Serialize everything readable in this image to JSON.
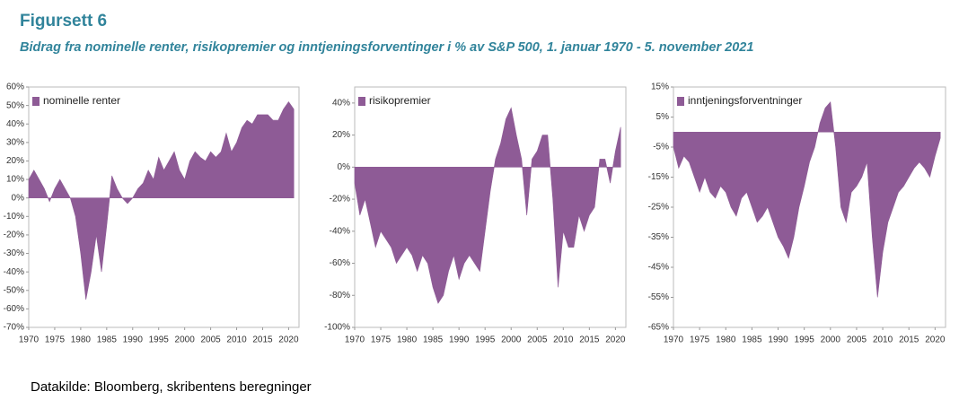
{
  "title": "Figursett 6",
  "subtitle": "Bidrag fra nominelle renter, risikopremier og inntjeningsforventinger i % av S&P 500, 1. januar 1970 - 5. november 2021",
  "source": "Datakilde: Bloomberg, skribentens beregninger",
  "chart_data": [
    {
      "type": "area",
      "legend": "upper left",
      "x": [
        1970,
        1971,
        1972,
        1973,
        1974,
        1975,
        1976,
        1977,
        1978,
        1979,
        1980,
        1981,
        1982,
        1983,
        1984,
        1985,
        1986,
        1987,
        1988,
        1989,
        1990,
        1991,
        1992,
        1993,
        1994,
        1995,
        1996,
        1997,
        1998,
        1999,
        2000,
        2001,
        2002,
        2003,
        2004,
        2005,
        2006,
        2007,
        2008,
        2009,
        2010,
        2011,
        2012,
        2013,
        2014,
        2015,
        2016,
        2017,
        2018,
        2019,
        2020,
        2021
      ],
      "series": [
        {
          "name": "nominelle renter",
          "color": "#8e5b96",
          "values": [
            10,
            15,
            10,
            5,
            -2,
            5,
            10,
            5,
            0,
            -10,
            -30,
            -55,
            -40,
            -20,
            -40,
            -15,
            12,
            5,
            0,
            -3,
            0,
            5,
            8,
            15,
            10,
            22,
            15,
            20,
            25,
            15,
            10,
            20,
            25,
            22,
            20,
            25,
            22,
            25,
            35,
            25,
            30,
            38,
            42,
            40,
            45,
            45,
            45,
            42,
            42,
            48,
            52,
            48
          ]
        }
      ],
      "xlim": [
        1970,
        2022
      ],
      "ylim": [
        -70,
        60
      ],
      "xticks": [
        1970,
        1975,
        1980,
        1985,
        1990,
        1995,
        2000,
        2005,
        2010,
        2015,
        2020
      ],
      "yticks": [
        {
          "value": 60,
          "label": "60%"
        },
        {
          "value": 50,
          "label": "50%"
        },
        {
          "value": 40,
          "label": "40%"
        },
        {
          "value": 30,
          "label": "30%"
        },
        {
          "value": 20,
          "label": "20%"
        },
        {
          "value": 10,
          "label": "10%"
        },
        {
          "value": 0,
          "label": "0%"
        },
        {
          "value": -10,
          "label": "-10%"
        },
        {
          "value": -20,
          "label": "-20%"
        },
        {
          "value": -30,
          "label": "-30%"
        },
        {
          "value": -40,
          "label": "-40%"
        },
        {
          "value": -50,
          "label": "-50%"
        },
        {
          "value": -60,
          "label": "-60%"
        },
        {
          "value": -70,
          "label": "-70%"
        }
      ]
    },
    {
      "type": "area",
      "legend": "upper left",
      "x": [
        1970,
        1971,
        1972,
        1973,
        1974,
        1975,
        1976,
        1977,
        1978,
        1979,
        1980,
        1981,
        1982,
        1983,
        1984,
        1985,
        1986,
        1987,
        1988,
        1989,
        1990,
        1991,
        1992,
        1993,
        1994,
        1995,
        1996,
        1997,
        1998,
        1999,
        2000,
        2001,
        2002,
        2003,
        2004,
        2005,
        2006,
        2007,
        2008,
        2009,
        2010,
        2011,
        2012,
        2013,
        2014,
        2015,
        2016,
        2017,
        2018,
        2019,
        2020,
        2021
      ],
      "series": [
        {
          "name": "risikopremier",
          "color": "#8e5b96",
          "values": [
            -10,
            -30,
            -20,
            -35,
            -50,
            -40,
            -45,
            -50,
            -60,
            -55,
            -50,
            -55,
            -65,
            -55,
            -60,
            -75,
            -85,
            -80,
            -65,
            -55,
            -70,
            -60,
            -55,
            -60,
            -65,
            -40,
            -15,
            5,
            15,
            30,
            37,
            20,
            5,
            -30,
            5,
            10,
            20,
            20,
            -20,
            -75,
            -40,
            -50,
            -50,
            -30,
            -40,
            -30,
            -25,
            5,
            5,
            -10,
            10,
            25
          ]
        }
      ],
      "xlim": [
        1970,
        2022
      ],
      "ylim": [
        -100,
        50
      ],
      "xticks": [
        1970,
        1975,
        1980,
        1985,
        1990,
        1995,
        2000,
        2005,
        2010,
        2015,
        2020
      ],
      "yticks": [
        {
          "value": 40,
          "label": "40%"
        },
        {
          "value": 20,
          "label": "20%"
        },
        {
          "value": 0,
          "label": "0%"
        },
        {
          "value": -20,
          "label": "-20%"
        },
        {
          "value": -40,
          "label": "-40%"
        },
        {
          "value": -60,
          "label": "-60%"
        },
        {
          "value": -80,
          "label": "-80%"
        },
        {
          "value": -100,
          "label": "-100%"
        }
      ]
    },
    {
      "type": "area",
      "legend": "upper left",
      "x": [
        1970,
        1971,
        1972,
        1973,
        1974,
        1975,
        1976,
        1977,
        1978,
        1979,
        1980,
        1981,
        1982,
        1983,
        1984,
        1985,
        1986,
        1987,
        1988,
        1989,
        1990,
        1991,
        1992,
        1993,
        1994,
        1995,
        1996,
        1997,
        1998,
        1999,
        2000,
        2001,
        2002,
        2003,
        2004,
        2005,
        2006,
        2007,
        2008,
        2009,
        2010,
        2011,
        2012,
        2013,
        2014,
        2015,
        2016,
        2017,
        2018,
        2019,
        2020,
        2021
      ],
      "series": [
        {
          "name": "inntjeningsforventninger",
          "color": "#8e5b96",
          "values": [
            -5,
            -12,
            -8,
            -10,
            -15,
            -20,
            -15,
            -20,
            -22,
            -18,
            -20,
            -25,
            -28,
            -22,
            -20,
            -25,
            -30,
            -28,
            -25,
            -30,
            -35,
            -38,
            -42,
            -35,
            -25,
            -18,
            -10,
            -5,
            3,
            8,
            10,
            -5,
            -25,
            -30,
            -20,
            -18,
            -15,
            -10,
            -35,
            -55,
            -40,
            -30,
            -25,
            -20,
            -18,
            -15,
            -12,
            -10,
            -12,
            -15,
            -8,
            -2
          ]
        }
      ],
      "xlim": [
        1970,
        2022
      ],
      "ylim": [
        -65,
        15
      ],
      "xticks": [
        1970,
        1975,
        1980,
        1985,
        1990,
        1995,
        2000,
        2005,
        2010,
        2015,
        2020
      ],
      "yticks": [
        {
          "value": 15,
          "label": "15%"
        },
        {
          "value": 5,
          "label": "5%"
        },
        {
          "value": -5,
          "label": "-5%"
        },
        {
          "value": -15,
          "label": "-15%"
        },
        {
          "value": -25,
          "label": "-25%"
        },
        {
          "value": -35,
          "label": "-35%"
        },
        {
          "value": -45,
          "label": "-45%"
        },
        {
          "value": -55,
          "label": "-55%"
        },
        {
          "value": -65,
          "label": "-65%"
        }
      ]
    }
  ]
}
